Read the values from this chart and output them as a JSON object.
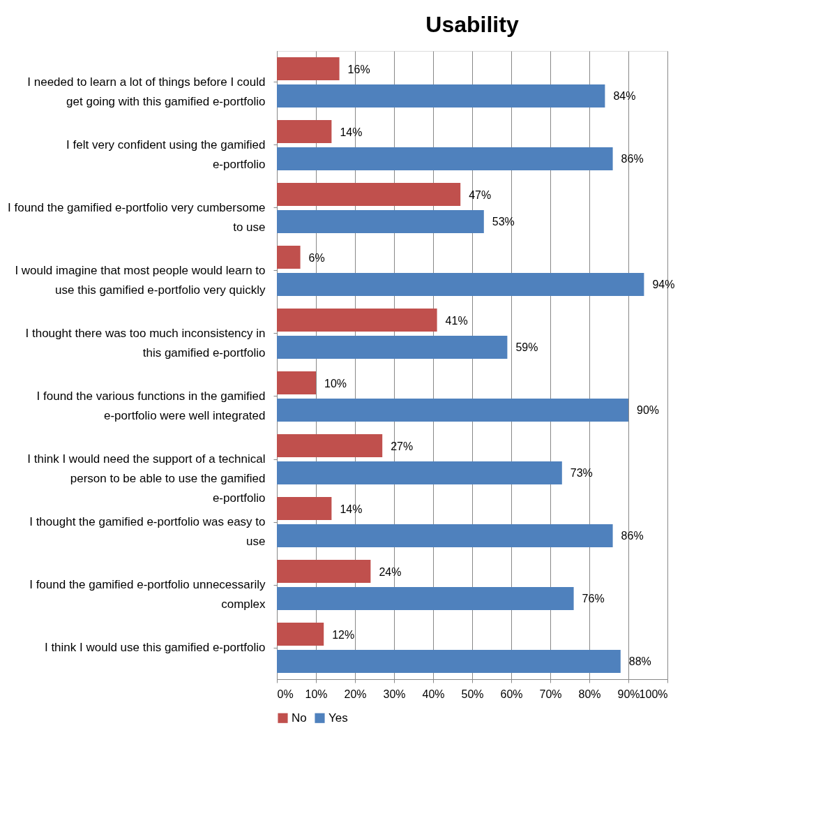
{
  "chart_data": {
    "type": "bar",
    "orientation": "horizontal",
    "title": "Usability",
    "categories": [
      "I needed to learn a lot of things before I could get going with this gamified e-portfolio",
      "I felt very confident using the gamified e-portfolio",
      "I found the gamified e-portfolio very cumbersome to use",
      "I would imagine that most people would learn to use this gamified e-portfolio very quickly",
      "I thought there was too much inconsistency in this gamified e-portfolio",
      "I found the various functions in the gamified e-portfolio were well integrated",
      "I think I would need the support of a technical person to be able to use the gamified e-portfolio",
      "I thought the gamified e-portfolio was easy to use",
      "I found the gamified e-portfolio unnecessarily complex",
      "I think I would use this gamified e-portfolio"
    ],
    "series": [
      {
        "name": "No",
        "color": "#c0504d",
        "values": [
          16,
          14,
          47,
          6,
          41,
          10,
          27,
          14,
          24,
          12
        ],
        "value_labels": [
          "16%",
          "14%",
          "47%",
          "6%",
          "41%",
          "10%",
          "27%",
          "14%",
          "24%",
          "12%"
        ]
      },
      {
        "name": "Yes",
        "color": "#4f81bd",
        "values": [
          84,
          86,
          53,
          94,
          59,
          90,
          73,
          86,
          76,
          88
        ],
        "value_labels": [
          "84%",
          "86%",
          "53%",
          "94%",
          "59%",
          "90%",
          "73%",
          "86%",
          "76%",
          "88%"
        ]
      }
    ],
    "xlim": [
      0,
      100
    ],
    "xticks": [
      {
        "value": 0,
        "label": "0%"
      },
      {
        "value": 10,
        "label": "10%"
      },
      {
        "value": 20,
        "label": "20%"
      },
      {
        "value": 30,
        "label": "30%"
      },
      {
        "value": 40,
        "label": "40%"
      },
      {
        "value": 50,
        "label": "50%"
      },
      {
        "value": 60,
        "label": "60%"
      },
      {
        "value": 70,
        "label": "70%"
      },
      {
        "value": 80,
        "label": "80%"
      },
      {
        "value": 90,
        "label": "90%"
      },
      {
        "value": 100,
        "label": "100%"
      }
    ],
    "grid": "x",
    "legend": "bottom"
  }
}
